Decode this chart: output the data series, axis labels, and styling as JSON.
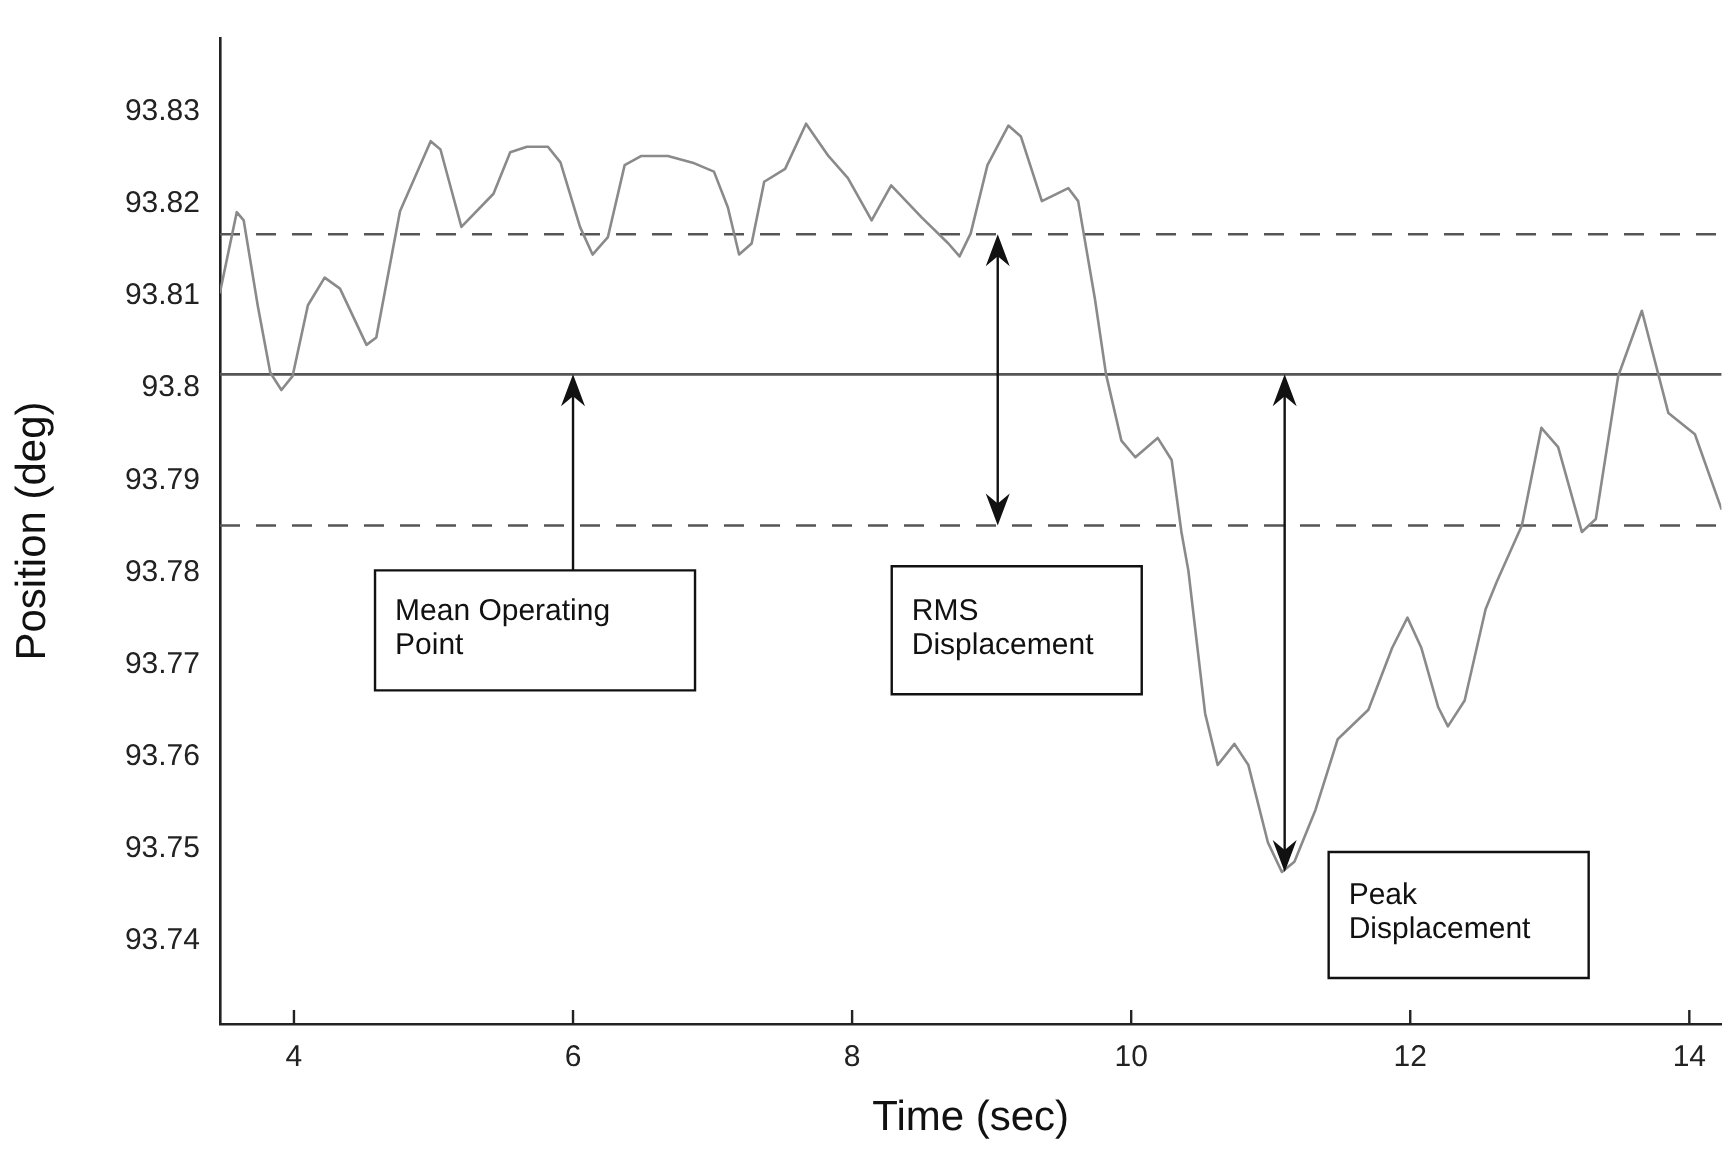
{
  "chart_data": {
    "type": "line",
    "xlabel": "Time (sec)",
    "ylabel": "Position (deg)",
    "xlim": [
      3.47,
      14.23
    ],
    "xticks": [
      4,
      6,
      8,
      10,
      12,
      14
    ],
    "ylim": [
      93.731,
      93.838
    ],
    "yticks": [
      93.74,
      93.75,
      93.76,
      93.77,
      93.78,
      93.79,
      {
        "value": 93.8,
        "label": "93.8"
      },
      93.81,
      93.82,
      93.83
    ],
    "grid": false,
    "legend": false,
    "marker": "none",
    "line_style": "solid",
    "series": [
      {
        "color": "#8a8a8a",
        "x": [
          3.47,
          3.59,
          3.64,
          3.74,
          3.83,
          3.91,
          3.99,
          4.1,
          4.22,
          4.33,
          4.52,
          4.59,
          4.76,
          4.98,
          5.05,
          5.2,
          5.43,
          5.55,
          5.67,
          5.82,
          5.91,
          6.05,
          6.14,
          6.25,
          6.37,
          6.49,
          6.68,
          6.87,
          7.01,
          7.11,
          7.19,
          7.28,
          7.37,
          7.52,
          7.67,
          7.83,
          7.97,
          8.14,
          8.28,
          8.5,
          8.69,
          8.77,
          8.85,
          8.97,
          9.12,
          9.21,
          9.36,
          9.55,
          9.62,
          9.74,
          9.82,
          9.93,
          10.03,
          10.19,
          10.29,
          10.36,
          10.41,
          10.53,
          10.62,
          10.74,
          10.84,
          10.98,
          11.08,
          11.17,
          11.32,
          11.48,
          11.7,
          11.87,
          11.98,
          12.08,
          12.2,
          12.27,
          12.39,
          12.54,
          12.62,
          12.8,
          12.94,
          13.06,
          13.23,
          13.33,
          13.49,
          13.66,
          13.85,
          14.04,
          14.23
        ],
        "values": [
          93.8104,
          93.8191,
          93.8182,
          93.809,
          93.8017,
          93.7998,
          93.8013,
          93.809,
          93.812,
          93.8108,
          93.8047,
          93.8055,
          93.8192,
          93.8268,
          93.8259,
          93.8175,
          93.8211,
          93.8256,
          93.8262,
          93.8262,
          93.8245,
          93.8175,
          93.8145,
          93.8164,
          93.8242,
          93.8252,
          93.8252,
          93.8244,
          93.8235,
          93.8196,
          93.8145,
          93.8157,
          93.8224,
          93.8238,
          93.8287,
          93.8252,
          93.8228,
          93.8182,
          93.822,
          93.8185,
          93.8157,
          93.8143,
          93.8168,
          93.8242,
          93.8285,
          93.8273,
          93.8203,
          93.8217,
          93.8203,
          93.8097,
          93.8015,
          93.7943,
          93.7925,
          93.7946,
          93.7922,
          93.7844,
          93.7802,
          93.7647,
          93.7591,
          93.7614,
          93.7591,
          93.7507,
          93.7475,
          93.7486,
          93.7542,
          93.7619,
          93.7651,
          93.7718,
          93.7751,
          93.7718,
          93.7654,
          93.7633,
          93.7661,
          93.776,
          93.779,
          93.7851,
          93.7957,
          93.7936,
          93.7844,
          93.7858,
          93.8013,
          93.8084,
          93.7973,
          93.795,
          93.7869
        ]
      }
    ],
    "ref_lines": [
      {
        "axis": "y",
        "value": 93.8015,
        "color": "#555555",
        "line_style": "solid"
      },
      {
        "axis": "y",
        "value": 93.8167,
        "color": "#555555",
        "line_style": "dashed"
      },
      {
        "axis": "y",
        "value": 93.7851,
        "color": "#555555",
        "line_style": "dashed"
      }
    ],
    "annotations": [
      {
        "text": "Mean Operating Point",
        "x": 6,
        "y": 93.8015
      },
      "RMS Displacement",
      {
        "text": "Peak Displacement",
        "x": 11.1,
        "y": 93.7475
      }
    ]
  }
}
